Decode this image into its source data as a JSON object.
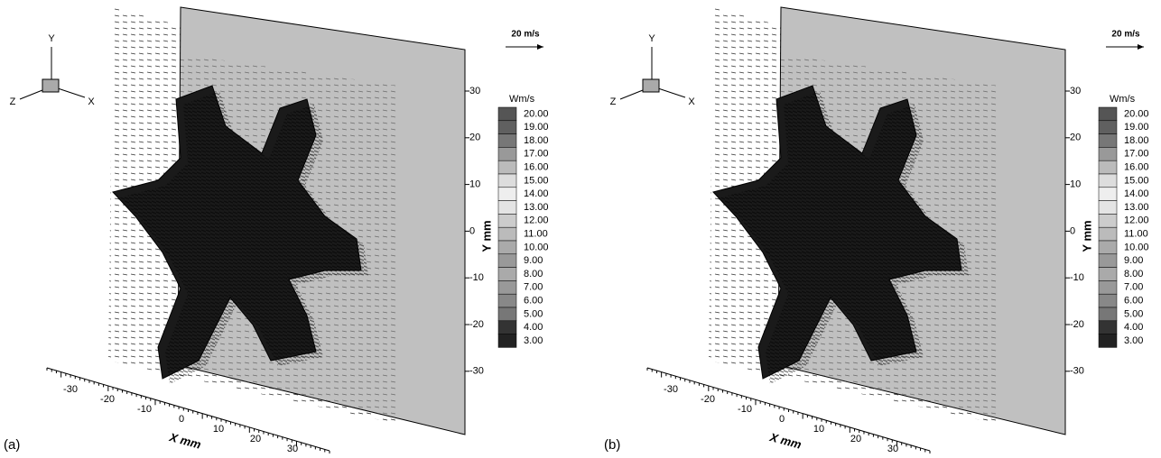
{
  "panels": [
    {
      "label": "(a)",
      "triad": {
        "y": "Y",
        "z": "Z",
        "x": "X"
      },
      "reference_vector": "20 m/s",
      "y_axis": {
        "title": "Y mm",
        "ticks": [
          "30",
          "20",
          "10",
          "0",
          "-10",
          "-20",
          "-30"
        ]
      },
      "x_axis": {
        "title": "X mm",
        "ticks": [
          "-30",
          "-20",
          "-10",
          "0",
          "10",
          "20",
          "30"
        ]
      },
      "legend": {
        "title": "Wm/s",
        "levels": [
          "20.00",
          "19.00",
          "18.00",
          "17.00",
          "16.00",
          "15.00",
          "14.00",
          "13.00",
          "12.00",
          "11.00",
          "10.00",
          "9.00",
          "8.00",
          "7.00",
          "6.00",
          "5.00",
          "4.00",
          "3.00"
        ]
      }
    },
    {
      "label": "(b)",
      "triad": {
        "y": "Y",
        "z": "Z",
        "x": "X"
      },
      "reference_vector": "20 m/s",
      "y_axis": {
        "title": "Y mm",
        "ticks": [
          "30",
          "20",
          "10",
          "0",
          "-10",
          "-20",
          "-30"
        ]
      },
      "x_axis": {
        "title": "X mm",
        "ticks": [
          "-30",
          "-20",
          "-10",
          "0",
          "10",
          "20",
          "30"
        ]
      },
      "legend": {
        "title": "Wm/s",
        "levels": [
          "20.00",
          "19.00",
          "18.00",
          "17.00",
          "16.00",
          "15.00",
          "14.00",
          "13.00",
          "12.00",
          "11.00",
          "10.00",
          "9.00",
          "8.00",
          "7.00",
          "6.00",
          "5.00",
          "4.00",
          "3.00"
        ]
      }
    }
  ]
}
